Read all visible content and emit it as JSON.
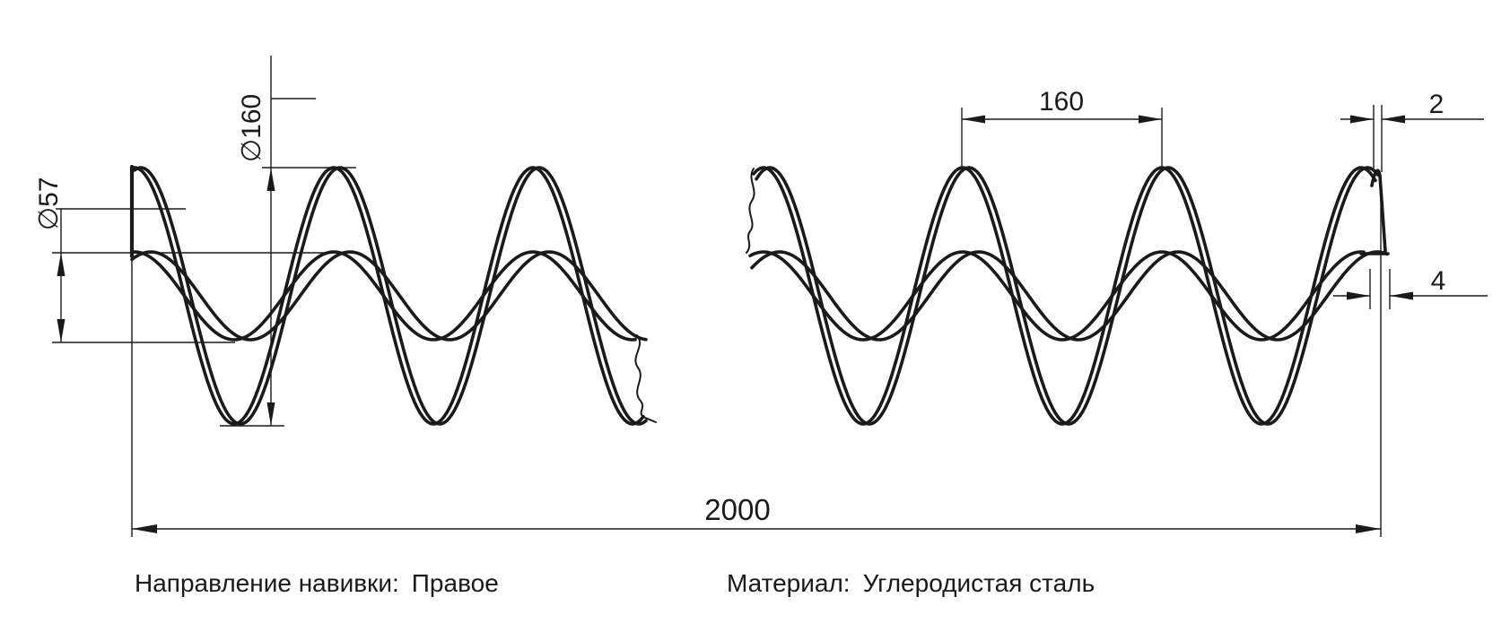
{
  "drawing": {
    "kind": "spiral-auger-flight-technical-drawing"
  },
  "dimensions": {
    "outer_diameter": {
      "label": "∅160",
      "value": 160
    },
    "inner_diameter": {
      "label": "∅57",
      "value": 57
    },
    "pitch": {
      "label": "160",
      "value": 160
    },
    "outer_edge_thickness": {
      "label": "2",
      "value": 2
    },
    "inner_edge_thickness": {
      "label": "4",
      "value": 4
    },
    "total_length": {
      "label": "2000",
      "value": 2000
    }
  },
  "notes": {
    "winding_label": "Направление навивки:",
    "winding_value": "Правое",
    "material_label": "Материал:",
    "material_value": "Углеродистая сталь"
  },
  "colors": {
    "line": "#1a1a1a",
    "background": "#ffffff"
  }
}
